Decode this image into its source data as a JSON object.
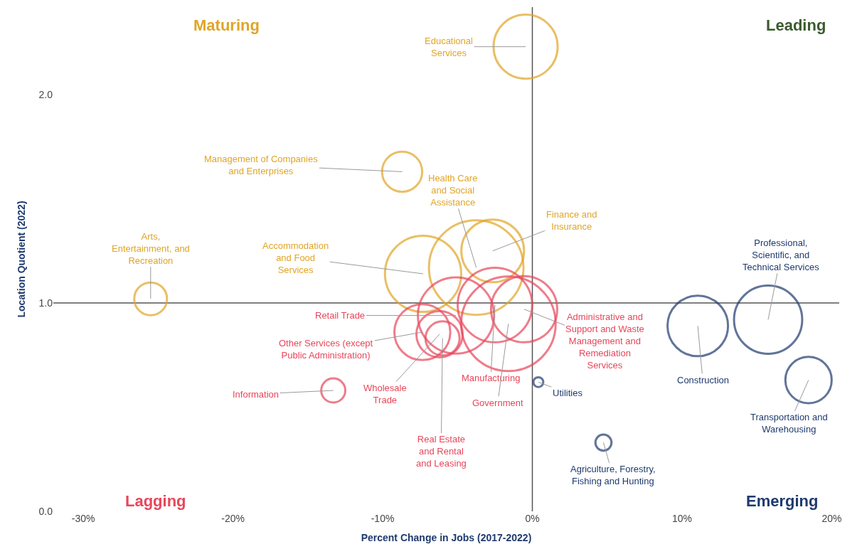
{
  "chart_data": {
    "type": "bubble",
    "xlabel": "Percent Change in Jobs (2017-2022)",
    "ylabel": "Location Quotient (2022)",
    "xlim": [
      -32,
      20.5
    ],
    "ylim": [
      0,
      2.42
    ],
    "xticks": [
      {
        "value": -30,
        "label": "-30%"
      },
      {
        "value": -20,
        "label": "-20%"
      },
      {
        "value": -10,
        "label": "-10%"
      },
      {
        "value": 0,
        "label": "0%"
      },
      {
        "value": 10,
        "label": "10%"
      },
      {
        "value": 20,
        "label": "20%"
      }
    ],
    "yticks": [
      {
        "value": 0,
        "label": "0.0"
      },
      {
        "value": 1,
        "label": "1.0"
      },
      {
        "value": 2,
        "label": "2.0"
      }
    ],
    "grid": false,
    "ref_lines": [
      {
        "axis": "x",
        "value": 0,
        "color": "#555555"
      },
      {
        "axis": "y",
        "value": 1,
        "color": "#555555"
      }
    ],
    "series": [
      {
        "name": "Maturing",
        "color": "#e0a526",
        "x": [
          -0.45,
          -8.7,
          -3.75,
          -25.5,
          -7.3,
          -2.65
        ],
        "values": [
          2.23,
          1.63,
          1.17,
          1.02,
          1.14,
          1.25
        ],
        "sizes": [
          0.46,
          0.18,
          1.0,
          0.12,
          0.65,
          0.44
        ]
      },
      {
        "name": "Emerging",
        "color": "#1f3a6e",
        "x": [
          15.75,
          0.4,
          11.05,
          18.45,
          4.75
        ],
        "values": [
          0.92,
          0.62,
          0.89,
          0.63,
          0.33
        ],
        "sizes": [
          0.52,
          0.011,
          0.41,
          0.24,
          0.029
        ]
      },
      {
        "name": "Lagging",
        "color": "#e8465a",
        "x": [
          -5.1,
          -7.35,
          -0.55,
          -13.3,
          -6.2,
          -6.0,
          -2.5,
          -1.6
        ],
        "values": [
          0.94,
          0.86,
          0.97,
          0.58,
          0.85,
          0.83,
          0.99,
          0.9
        ],
        "sizes": [
          0.65,
          0.35,
          0.49,
          0.065,
          0.24,
          0.13,
          0.62,
          1.0
        ]
      }
    ],
    "annotations": [
      {
        "text": "Educational\nServices",
        "x": -0.45,
        "y": 2.23
      },
      {
        "text": "Management of Companies\nand Enterprises",
        "x": -8.7,
        "y": 1.63
      },
      {
        "text": "Health Care\nand Social\nAssistance",
        "x": -3.75,
        "y": 1.17
      },
      {
        "text": "Arts,\nEntertainment, and\nRecreation",
        "x": -25.5,
        "y": 1.02
      },
      {
        "text": "Accommodation\nand Food\nServices",
        "x": -7.3,
        "y": 1.14
      },
      {
        "text": "Finance and\nInsurance",
        "x": -2.65,
        "y": 1.25
      },
      {
        "text": "Professional,\nScientific, and\nTechnical Services",
        "x": 15.75,
        "y": 0.92
      },
      {
        "text": "Utilities",
        "x": 0.4,
        "y": 0.62
      },
      {
        "text": "Construction",
        "x": 11.05,
        "y": 0.89
      },
      {
        "text": "Transportation and\nWarehousing",
        "x": 18.45,
        "y": 0.63
      },
      {
        "text": "Agriculture, Forestry,\nFishing and Hunting",
        "x": 4.75,
        "y": 0.33
      },
      {
        "text": "Retail Trade",
        "x": -5.1,
        "y": 0.94
      },
      {
        "text": "Other Services (except\nPublic Administration)",
        "x": -7.35,
        "y": 0.86
      },
      {
        "text": "Administrative and\nSupport and Waste\nManagement and\nRemediation\nServices",
        "x": -0.55,
        "y": 0.97
      },
      {
        "text": "Information",
        "x": -13.3,
        "y": 0.58
      },
      {
        "text": "Wholesale\nTrade",
        "x": -6.2,
        "y": 0.85
      },
      {
        "text": "Real Estate\nand Rental\nand Leasing",
        "x": -6.0,
        "y": 0.83
      },
      {
        "text": "Manufacturing",
        "x": -2.5,
        "y": 0.99
      },
      {
        "text": "Government",
        "x": -1.6,
        "y": 0.9
      },
      "Leading"
    ]
  }
}
